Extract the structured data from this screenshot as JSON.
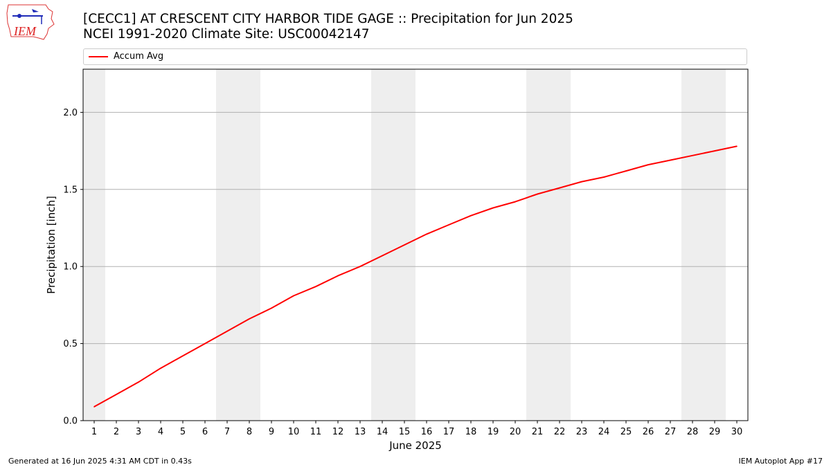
{
  "header": {
    "title_line1": "[CECC1] AT CRESCENT CITY HARBOR TIDE GAGE :: Precipitation for Jun 2025",
    "title_line2": "NCEI 1991-2020 Climate Site: USC00042147"
  },
  "logo": {
    "text": "IEM",
    "icon": "iem-logo"
  },
  "footer": {
    "generated": "Generated at 16 Jun 2025 4:31 AM CDT in 0.43s",
    "app": "IEM Autoplot App #17"
  },
  "chart_data": {
    "type": "line",
    "title": "[CECC1] AT CRESCENT CITY HARBOR TIDE GAGE :: Precipitation for Jun 2025",
    "subtitle": "NCEI 1991-2020 Climate Site: USC00042147",
    "xlabel": "June 2025",
    "ylabel": "Precipitation [inch]",
    "x": [
      1,
      2,
      3,
      4,
      5,
      6,
      7,
      8,
      9,
      10,
      11,
      12,
      13,
      14,
      15,
      16,
      17,
      18,
      19,
      20,
      21,
      22,
      23,
      24,
      25,
      26,
      27,
      28,
      29,
      30
    ],
    "xlim": [
      0.5,
      30.5
    ],
    "ylim": [
      0,
      2.28
    ],
    "yticks": [
      0.0,
      0.5,
      1.0,
      1.5,
      2.0
    ],
    "ytick_labels": [
      "0.0",
      "0.5",
      "1.0",
      "1.5",
      "2.0"
    ],
    "grid": "horizontal",
    "legend_position": "top",
    "weekend_shading": [
      [
        0.5,
        1.5
      ],
      [
        6.5,
        8.5
      ],
      [
        13.5,
        15.5
      ],
      [
        20.5,
        22.5
      ],
      [
        27.5,
        29.5
      ]
    ],
    "shade_color": "#eeeeee",
    "series": [
      {
        "name": "Accum Avg",
        "color": "#ff0000",
        "values": [
          0.09,
          0.17,
          0.25,
          0.34,
          0.42,
          0.5,
          0.58,
          0.66,
          0.73,
          0.81,
          0.87,
          0.94,
          1.0,
          1.07,
          1.14,
          1.21,
          1.27,
          1.33,
          1.38,
          1.42,
          1.47,
          1.51,
          1.55,
          1.58,
          1.62,
          1.66,
          1.69,
          1.72,
          1.75,
          1.78
        ]
      }
    ]
  }
}
